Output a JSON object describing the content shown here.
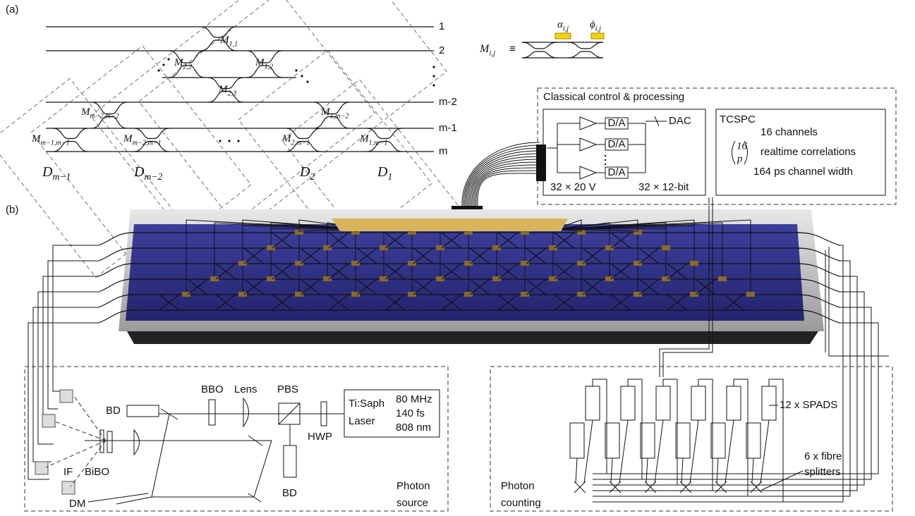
{
  "panel_a": {
    "label": "(a)",
    "modes": [
      "1",
      "2",
      "m-2",
      "m-1",
      "m"
    ],
    "unit_cells": [
      {
        "symbol": "M",
        "sub": "1,1"
      },
      {
        "symbol": "M",
        "sub": "2,2"
      },
      {
        "symbol": "M",
        "sub": "1,2"
      },
      {
        "symbol": "M",
        "sub": "2,3"
      },
      {
        "symbol": "M",
        "sub": "m−2,m−2"
      },
      {
        "symbol": "M",
        "sub": "1,m−2"
      },
      {
        "symbol": "M",
        "sub": "m−1,m−1"
      },
      {
        "symbol": "M",
        "sub": "m−2,m−1"
      },
      {
        "symbol": "M",
        "sub": "2,m−1"
      },
      {
        "symbol": "M",
        "sub": "1,m−1"
      }
    ],
    "diagonals": [
      {
        "symbol": "D",
        "sub": "m−1"
      },
      {
        "symbol": "D",
        "sub": "m−2"
      },
      {
        "symbol": "D",
        "sub": "2"
      },
      {
        "symbol": "D",
        "sub": "1"
      }
    ],
    "definition": {
      "symbol": "M",
      "sub": "i,j",
      "equiv": "≡",
      "alpha": {
        "symbol": "α",
        "sub": "i,j"
      },
      "phi": {
        "symbol": "ϕ",
        "sub": "i,j"
      }
    }
  },
  "control": {
    "title": "Classical control & processing",
    "dac": "DAC",
    "converters": [
      "D/A",
      "D/A",
      "D/A"
    ],
    "voltage": "32 × 20 V",
    "resolution": "32 × 12-bit"
  },
  "tcspc": {
    "title": "TCSPC",
    "lines": [
      "16 channels",
      "realtime correlations",
      "164 ps channel width"
    ],
    "binom": {
      "top": "16",
      "bottom": "p"
    }
  },
  "panel_b": {
    "label": "(b)"
  },
  "source": {
    "bd_top": "BD",
    "bbo": "BBO",
    "lens": "Lens",
    "pbs": "PBS",
    "laser": [
      "Ti:Saph",
      "Laser"
    ],
    "laser_specs": [
      "80 MHz",
      "140 fs",
      "808 nm"
    ],
    "hwp": "HWP",
    "bd_bottom": "BD",
    "if": "IF",
    "bibo": "BiBO",
    "dm": "DM",
    "title": [
      "Photon",
      "source"
    ]
  },
  "counting": {
    "spads": "12 x SPADS",
    "splitters": [
      "6 x fibre",
      "splitters"
    ],
    "title": [
      "Photon",
      "counting"
    ]
  }
}
